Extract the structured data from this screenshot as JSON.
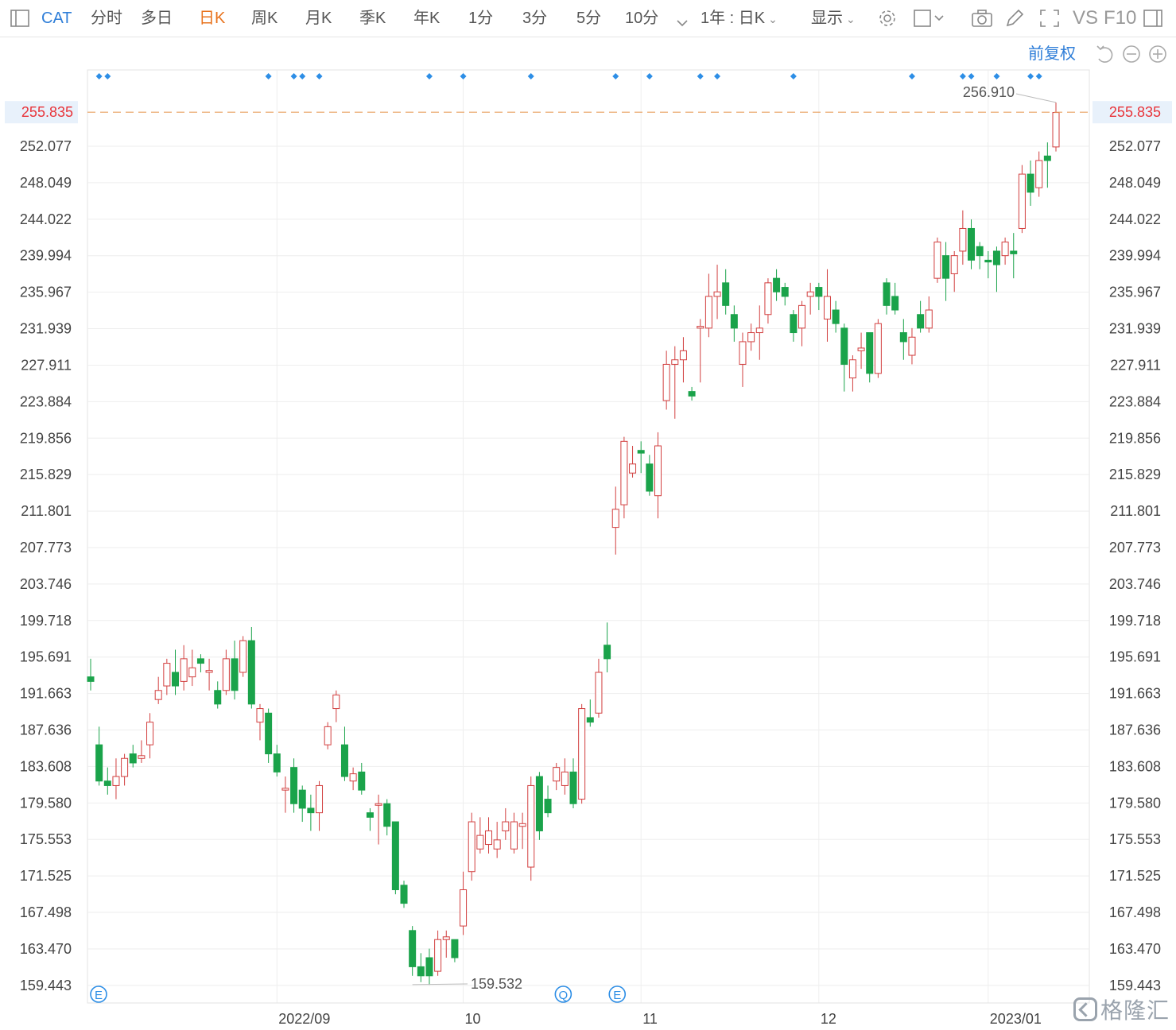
{
  "toolbar": {
    "symbol": "CAT",
    "tabs": [
      "分时",
      "多日",
      "日K",
      "周K",
      "月K",
      "季K",
      "年K",
      "1分",
      "3分",
      "5分",
      "10分"
    ],
    "active_tab": "日K",
    "period": "1年 : 日K",
    "display": "显示",
    "vs": "VS",
    "f10": "F10"
  },
  "adjust_label": "前复权",
  "watermark": "格隆汇",
  "colors": {
    "up": "#d23f3f",
    "down": "#1aa34a",
    "marker": "#2d8ee6",
    "price_line": "#e8a060",
    "price_label": "#e8343a"
  },
  "chart_data": {
    "type": "candlestick",
    "title": "",
    "xlabel": "",
    "ylabel": "",
    "ylim": [
      157.5,
      260.5
    ],
    "y_ticks": [
      "159.443",
      "163.470",
      "167.498",
      "171.525",
      "175.553",
      "179.580",
      "183.608",
      "187.636",
      "191.663",
      "195.691",
      "199.718",
      "203.746",
      "207.773",
      "211.801",
      "215.829",
      "219.856",
      "223.884",
      "227.911",
      "231.939",
      "235.967",
      "239.994",
      "244.022",
      "248.049",
      "252.077"
    ],
    "x_ticks": [
      "2022/09",
      "10",
      "11",
      "12",
      "2023/01"
    ],
    "last_price": "255.835",
    "high_label": "256.910",
    "low_label": "159.532",
    "event_badges": [
      "E",
      "Q",
      "E"
    ],
    "candles": [
      [
        193.5,
        193.0,
        195.5,
        192.0
      ],
      [
        186.0,
        182.0,
        188.0,
        181.5
      ],
      [
        182.0,
        181.5,
        183.5,
        180.5
      ],
      [
        181.5,
        182.5,
        184.5,
        180.0
      ],
      [
        182.5,
        184.5,
        185.0,
        181.5
      ],
      [
        185.0,
        184.0,
        186.0,
        183.5
      ],
      [
        184.5,
        184.8,
        186.5,
        184.0
      ],
      [
        186.0,
        188.5,
        189.5,
        184.5
      ],
      [
        191.0,
        192.0,
        193.5,
        190.5
      ],
      [
        192.5,
        195.0,
        195.5,
        191.5
      ],
      [
        194.0,
        192.5,
        196.5,
        191.5
      ],
      [
        193.0,
        195.5,
        197.0,
        192.0
      ],
      [
        193.5,
        194.5,
        196.5,
        192.5
      ],
      [
        195.5,
        195.0,
        196.0,
        194.0
      ],
      [
        194.0,
        194.2,
        195.5,
        192.0
      ],
      [
        192.0,
        190.5,
        193.0,
        190.0
      ],
      [
        192.0,
        195.5,
        196.5,
        191.5
      ],
      [
        195.5,
        192.0,
        197.5,
        191.0
      ],
      [
        194.0,
        197.5,
        198.0,
        193.5
      ],
      [
        197.5,
        190.5,
        199.0,
        190.0
      ],
      [
        188.5,
        190.0,
        190.5,
        186.5
      ],
      [
        189.5,
        185.0,
        190.0,
        184.0
      ],
      [
        185.0,
        183.0,
        186.0,
        182.5
      ],
      [
        181.0,
        181.2,
        182.5,
        178.5
      ],
      [
        183.5,
        179.5,
        184.5,
        178.5
      ],
      [
        181.0,
        179.0,
        181.5,
        177.5
      ],
      [
        179.0,
        178.5,
        180.5,
        176.5
      ],
      [
        178.5,
        181.5,
        182.0,
        176.5
      ],
      [
        186.0,
        188.0,
        188.5,
        185.5
      ],
      [
        190.0,
        191.5,
        192.0,
        188.5
      ],
      [
        186.0,
        182.5,
        188.0,
        182.0
      ],
      [
        182.0,
        182.8,
        183.5,
        181.0
      ],
      [
        183.0,
        181.0,
        184.0,
        180.5
      ],
      [
        178.5,
        178.0,
        179.0,
        176.5
      ],
      [
        179.5,
        179.5,
        180.5,
        175.0
      ],
      [
        179.5,
        177.0,
        180.0,
        176.0
      ],
      [
        177.5,
        170.0,
        177.5,
        169.5
      ],
      [
        170.5,
        168.5,
        171.0,
        168.0
      ],
      [
        165.5,
        161.5,
        166.0,
        160.5
      ],
      [
        161.5,
        160.5,
        163.0,
        159.8
      ],
      [
        162.5,
        160.5,
        163.5,
        159.5
      ],
      [
        161.0,
        164.5,
        165.5,
        160.5
      ],
      [
        164.5,
        164.8,
        165.5,
        162.5
      ],
      [
        164.5,
        162.5,
        164.5,
        162.0
      ],
      [
        166.0,
        170.0,
        172.0,
        165.0
      ],
      [
        172.0,
        177.5,
        178.5,
        171.0
      ],
      [
        174.5,
        176.0,
        178.0,
        174.0
      ],
      [
        175.0,
        176.5,
        178.0,
        174.0
      ],
      [
        174.5,
        175.5,
        177.5,
        173.5
      ],
      [
        176.5,
        177.5,
        179.0,
        175.5
      ],
      [
        174.5,
        177.5,
        178.5,
        174.0
      ],
      [
        177.0,
        177.3,
        178.5,
        174.5
      ],
      [
        172.5,
        181.5,
        182.5,
        171.0
      ],
      [
        182.5,
        176.5,
        183.0,
        175.5
      ],
      [
        180.0,
        178.5,
        181.5,
        178.0
      ],
      [
        182.0,
        183.5,
        184.0,
        181.0
      ],
      [
        181.5,
        183.0,
        184.5,
        180.5
      ],
      [
        183.0,
        179.5,
        184.5,
        179.0
      ],
      [
        180.0,
        190.0,
        190.5,
        179.5
      ],
      [
        189.0,
        188.5,
        191.0,
        188.0
      ],
      [
        189.5,
        194.0,
        195.5,
        189.0
      ],
      [
        197.0,
        195.5,
        199.5,
        194.0
      ],
      [
        210.0,
        212.0,
        214.5,
        207.0
      ],
      [
        212.5,
        219.5,
        220.0,
        211.0
      ],
      [
        216.0,
        217.0,
        219.0,
        215.5
      ],
      [
        218.5,
        218.2,
        219.5,
        216.0
      ],
      [
        217.0,
        214.0,
        218.0,
        213.5
      ],
      [
        213.5,
        219.0,
        220.5,
        211.0
      ],
      [
        224.0,
        228.0,
        229.5,
        223.0
      ],
      [
        228.0,
        228.5,
        230.0,
        222.0
      ],
      [
        228.5,
        229.5,
        231.0,
        226.0
      ],
      [
        225.0,
        224.5,
        225.5,
        224.0
      ],
      [
        232.0,
        232.2,
        233.0,
        226.0
      ],
      [
        232.0,
        235.5,
        238.0,
        231.0
      ],
      [
        235.5,
        236.0,
        239.0,
        233.0
      ],
      [
        237.0,
        234.5,
        238.5,
        233.5
      ],
      [
        233.5,
        232.0,
        234.5,
        230.5
      ],
      [
        228.0,
        230.5,
        231.5,
        225.5
      ],
      [
        230.5,
        231.5,
        232.5,
        229.5
      ],
      [
        231.5,
        232.0,
        234.5,
        228.5
      ],
      [
        233.5,
        237.0,
        237.5,
        232.5
      ],
      [
        237.5,
        236.0,
        238.5,
        235.0
      ],
      [
        236.5,
        235.5,
        237.0,
        234.5
      ],
      [
        233.5,
        231.5,
        234.0,
        230.5
      ],
      [
        232.0,
        234.5,
        235.0,
        230.0
      ],
      [
        235.5,
        236.0,
        237.0,
        233.5
      ],
      [
        236.5,
        235.5,
        237.0,
        234.0
      ],
      [
        233.0,
        235.5,
        238.5,
        230.5
      ],
      [
        234.0,
        232.5,
        235.0,
        231.5
      ],
      [
        232.0,
        228.0,
        232.5,
        225.0
      ],
      [
        226.5,
        228.5,
        229.0,
        225.0
      ],
      [
        229.5,
        229.8,
        231.5,
        227.5
      ],
      [
        231.5,
        227.0,
        231.5,
        226.0
      ],
      [
        227.0,
        232.5,
        233.0,
        226.5
      ],
      [
        237.0,
        234.5,
        237.5,
        233.5
      ],
      [
        235.5,
        234.0,
        237.0,
        233.5
      ],
      [
        231.5,
        230.5,
        233.0,
        228.5
      ],
      [
        229.0,
        231.0,
        232.0,
        228.0
      ],
      [
        233.5,
        232.0,
        235.0,
        231.5
      ],
      [
        232.0,
        234.0,
        235.5,
        231.5
      ],
      [
        237.5,
        241.5,
        242.0,
        237.0
      ],
      [
        240.0,
        237.5,
        241.5,
        235.0
      ],
      [
        238.0,
        240.0,
        240.5,
        236.0
      ],
      [
        240.5,
        243.0,
        245.0,
        239.0
      ],
      [
        243.0,
        239.5,
        244.0,
        238.5
      ],
      [
        241.0,
        240.0,
        241.5,
        238.5
      ],
      [
        239.5,
        239.3,
        240.5,
        237.5
      ],
      [
        240.5,
        239.0,
        241.0,
        236.0
      ],
      [
        240.0,
        241.5,
        242.0,
        239.0
      ],
      [
        240.5,
        240.2,
        242.5,
        237.5
      ],
      [
        243.0,
        249.0,
        250.0,
        242.5
      ],
      [
        249.0,
        247.0,
        250.5,
        245.5
      ],
      [
        247.5,
        250.5,
        251.5,
        246.5
      ],
      [
        251.0,
        250.5,
        252.5,
        247.5
      ],
      [
        252.0,
        255.8,
        256.9,
        251.5
      ]
    ]
  }
}
